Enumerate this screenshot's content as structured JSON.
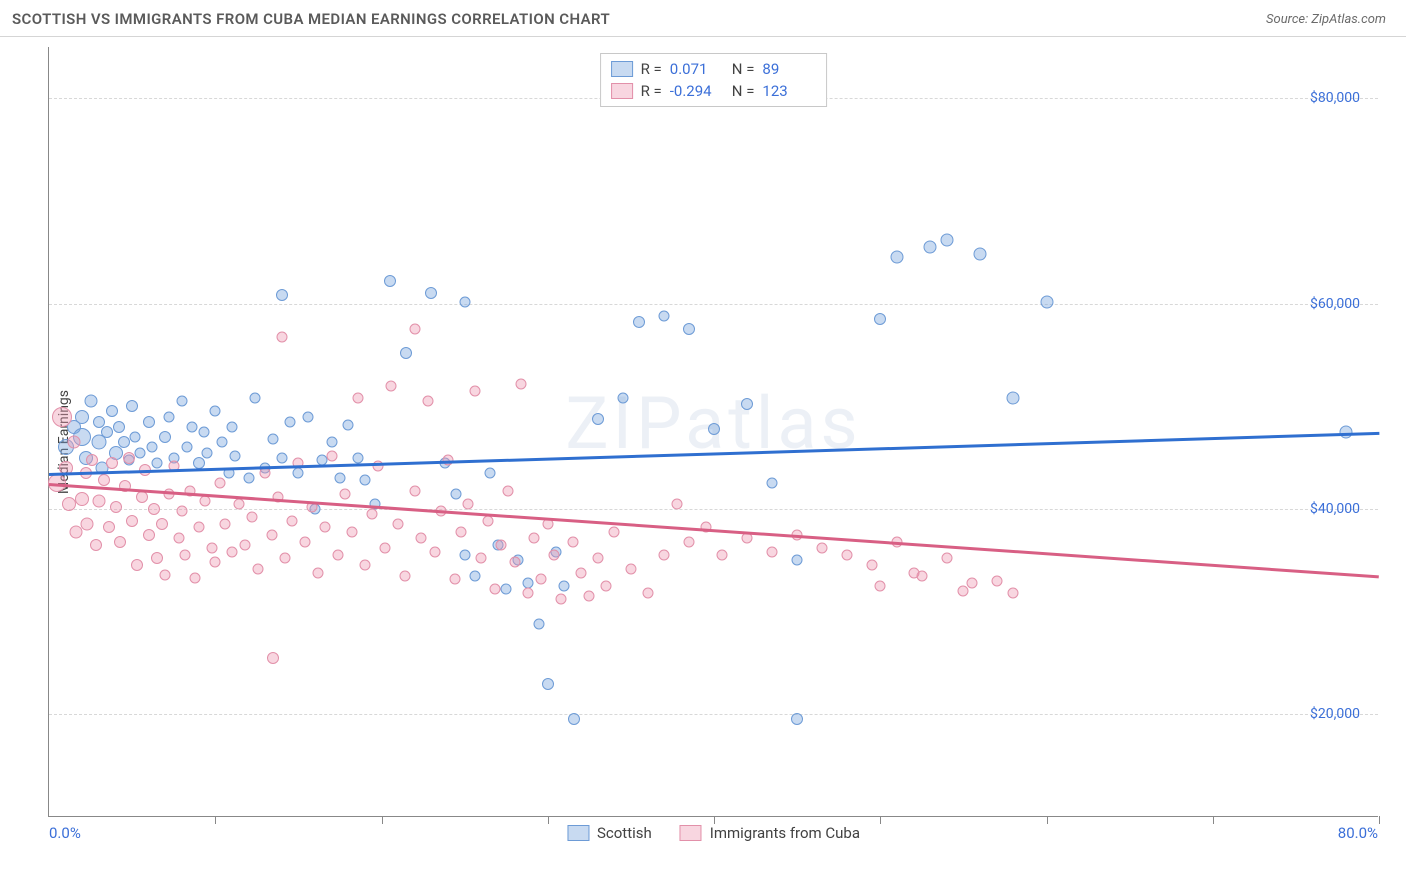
{
  "title": "SCOTTISH VS IMMIGRANTS FROM CUBA MEDIAN EARNINGS CORRELATION CHART",
  "source": "Source: ZipAtlas.com",
  "watermark": "ZIPatlas",
  "chart": {
    "type": "scatter",
    "ylabel": "Median Earnings",
    "xlim": [
      0,
      80
    ],
    "ylim": [
      10000,
      85000
    ],
    "y_gridlines": [
      20000,
      40000,
      60000,
      80000
    ],
    "y_tick_labels": [
      "$20,000",
      "$40,000",
      "$60,000",
      "$80,000"
    ],
    "x_ticks_pct": [
      0,
      10,
      20,
      30,
      40,
      50,
      60,
      70,
      80
    ],
    "x_axis_labels": {
      "left": "0.0%",
      "right": "80.0%"
    },
    "background_color": "#ffffff",
    "grid_color": "#d8d8d8",
    "axis_color": "#888888",
    "value_text_color": "#3b6fd8",
    "marker_size_min": 10,
    "marker_size_max": 22,
    "series": [
      {
        "name": "Scottish",
        "color_fill": "rgba(118,162,219,0.40)",
        "color_stroke": "#6d9bd6",
        "R": "0.071",
        "N": "89",
        "trend": {
          "x1": 0,
          "y1": 43500,
          "x2": 80,
          "y2": 47500,
          "color": "#2f6fd0",
          "width": 2.5
        },
        "points": [
          [
            1,
            46000,
            16
          ],
          [
            1.5,
            48000,
            14
          ],
          [
            2,
            47000,
            18
          ],
          [
            2,
            49000,
            14
          ],
          [
            2.2,
            45000,
            14
          ],
          [
            2.5,
            50500,
            13
          ],
          [
            3,
            46500,
            15
          ],
          [
            3,
            48500,
            12
          ],
          [
            3.2,
            44000,
            13
          ],
          [
            3.5,
            47500,
            12
          ],
          [
            3.8,
            49500,
            12
          ],
          [
            4,
            45500,
            14
          ],
          [
            4.2,
            48000,
            12
          ],
          [
            4.5,
            46500,
            12
          ],
          [
            4.8,
            44800,
            11
          ],
          [
            5,
            50000,
            12
          ],
          [
            5.2,
            47000,
            11
          ],
          [
            5.5,
            45500,
            11
          ],
          [
            6,
            48500,
            12
          ],
          [
            6.2,
            46000,
            11
          ],
          [
            6.5,
            44500,
            11
          ],
          [
            7,
            47000,
            12
          ],
          [
            7.2,
            49000,
            11
          ],
          [
            7.5,
            45000,
            11
          ],
          [
            8,
            50500,
            11
          ],
          [
            8.3,
            46000,
            11
          ],
          [
            8.6,
            48000,
            11
          ],
          [
            9,
            44500,
            12
          ],
          [
            9.3,
            47500,
            11
          ],
          [
            9.5,
            45500,
            11
          ],
          [
            10,
            49500,
            11
          ],
          [
            10.4,
            46500,
            11
          ],
          [
            10.8,
            43500,
            11
          ],
          [
            11,
            48000,
            11
          ],
          [
            11.2,
            45200,
            11
          ],
          [
            12,
            43000,
            11
          ],
          [
            12.4,
            50800,
            11
          ],
          [
            13,
            44000,
            11
          ],
          [
            13.5,
            46800,
            11
          ],
          [
            14,
            45000,
            11
          ],
          [
            14.5,
            48500,
            11
          ],
          [
            15,
            43500,
            11
          ],
          [
            15.6,
            49000,
            11
          ],
          [
            16,
            40000,
            11
          ],
          [
            16.4,
            44800,
            11
          ],
          [
            17,
            46500,
            11
          ],
          [
            17.5,
            43000,
            11
          ],
          [
            18,
            48200,
            11
          ],
          [
            18.6,
            45000,
            11
          ],
          [
            19,
            42800,
            11
          ],
          [
            19.6,
            40500,
            11
          ],
          [
            14,
            60800,
            12
          ],
          [
            20.5,
            62200,
            12
          ],
          [
            21.5,
            55200,
            12
          ],
          [
            23,
            61000,
            12
          ],
          [
            25,
            60200,
            11
          ],
          [
            23.8,
            44500,
            11
          ],
          [
            24.5,
            41500,
            11
          ],
          [
            25,
            35500,
            11
          ],
          [
            25.6,
            33500,
            11
          ],
          [
            26.5,
            43500,
            11
          ],
          [
            27,
            36500,
            11
          ],
          [
            27.5,
            32200,
            11
          ],
          [
            28.2,
            35000,
            11
          ],
          [
            28.8,
            32800,
            11
          ],
          [
            29.5,
            28800,
            11
          ],
          [
            30,
            23000,
            12
          ],
          [
            30.5,
            35800,
            11
          ],
          [
            31,
            32500,
            11
          ],
          [
            31.6,
            19500,
            12
          ],
          [
            33,
            48800,
            12
          ],
          [
            34.5,
            50800,
            11
          ],
          [
            35.5,
            58200,
            12
          ],
          [
            37,
            58800,
            11
          ],
          [
            38.5,
            57500,
            12
          ],
          [
            40,
            47800,
            12
          ],
          [
            42,
            50200,
            12
          ],
          [
            43.5,
            42500,
            11
          ],
          [
            45,
            35000,
            11
          ],
          [
            45,
            19500,
            12
          ],
          [
            50,
            58500,
            12
          ],
          [
            51,
            64500,
            13
          ],
          [
            53,
            65500,
            13
          ],
          [
            54,
            66200,
            13
          ],
          [
            56,
            64800,
            13
          ],
          [
            58,
            50800,
            13
          ],
          [
            60,
            60200,
            13
          ],
          [
            78,
            47500,
            13
          ]
        ]
      },
      {
        "name": "Immigrants from Cuba",
        "color_fill": "rgba(237,153,177,0.40)",
        "color_stroke": "#e290a9",
        "R": "-0.294",
        "N": "123",
        "trend": {
          "x1": 0,
          "y1": 42500,
          "x2": 80,
          "y2": 33500,
          "color": "#d85f84",
          "width": 2.5
        },
        "points": [
          [
            0.5,
            42500,
            18
          ],
          [
            0.8,
            49000,
            20
          ],
          [
            1,
            44000,
            14
          ],
          [
            1.2,
            40500,
            14
          ],
          [
            1.5,
            46500,
            13
          ],
          [
            1.6,
            37800,
            13
          ],
          [
            2,
            41000,
            14
          ],
          [
            2.2,
            43500,
            12
          ],
          [
            2.3,
            38500,
            13
          ],
          [
            2.6,
            44800,
            12
          ],
          [
            2.8,
            36500,
            12
          ],
          [
            3,
            40800,
            13
          ],
          [
            3.3,
            42800,
            12
          ],
          [
            3.6,
            38200,
            12
          ],
          [
            3.8,
            44500,
            12
          ],
          [
            4,
            40200,
            12
          ],
          [
            4.3,
            36800,
            12
          ],
          [
            4.6,
            42200,
            12
          ],
          [
            4.8,
            45000,
            12
          ],
          [
            5,
            38800,
            12
          ],
          [
            5.3,
            34500,
            12
          ],
          [
            5.6,
            41200,
            12
          ],
          [
            5.8,
            43800,
            12
          ],
          [
            6,
            37500,
            12
          ],
          [
            6.3,
            40000,
            12
          ],
          [
            6.5,
            35200,
            12
          ],
          [
            6.8,
            38500,
            12
          ],
          [
            7,
            33600,
            11
          ],
          [
            7.2,
            41500,
            11
          ],
          [
            7.5,
            44200,
            11
          ],
          [
            7.8,
            37200,
            11
          ],
          [
            8,
            39800,
            11
          ],
          [
            8.2,
            35500,
            11
          ],
          [
            8.5,
            41800,
            11
          ],
          [
            8.8,
            33300,
            11
          ],
          [
            9,
            38200,
            11
          ],
          [
            9.4,
            40800,
            11
          ],
          [
            9.8,
            36200,
            11
          ],
          [
            10,
            34800,
            11
          ],
          [
            10.3,
            42500,
            11
          ],
          [
            10.6,
            38500,
            11
          ],
          [
            11,
            35800,
            11
          ],
          [
            11.4,
            40500,
            11
          ],
          [
            11.8,
            36500,
            11
          ],
          [
            12.2,
            39200,
            11
          ],
          [
            12.6,
            34200,
            11
          ],
          [
            13,
            43500,
            11
          ],
          [
            13.4,
            37500,
            11
          ],
          [
            13.8,
            41200,
            11
          ],
          [
            14.2,
            35200,
            11
          ],
          [
            13.5,
            25500,
            12
          ],
          [
            14.6,
            38800,
            11
          ],
          [
            15,
            44500,
            11
          ],
          [
            15.4,
            36800,
            11
          ],
          [
            15.8,
            40200,
            11
          ],
          [
            16.2,
            33800,
            11
          ],
          [
            16.6,
            38200,
            11
          ],
          [
            17,
            45200,
            11
          ],
          [
            17.4,
            35500,
            11
          ],
          [
            17.8,
            41500,
            11
          ],
          [
            18.2,
            37800,
            11
          ],
          [
            18.6,
            50800,
            11
          ],
          [
            19,
            34500,
            11
          ],
          [
            19.4,
            39500,
            11
          ],
          [
            19.8,
            44200,
            11
          ],
          [
            20.2,
            36200,
            11
          ],
          [
            20.6,
            52000,
            11
          ],
          [
            21,
            38500,
            11
          ],
          [
            21.4,
            33500,
            11
          ],
          [
            14,
            56800,
            11
          ],
          [
            22,
            41800,
            11
          ],
          [
            22.4,
            37200,
            11
          ],
          [
            22,
            57500,
            11
          ],
          [
            22.8,
            50500,
            11
          ],
          [
            23.2,
            35800,
            11
          ],
          [
            23.6,
            39800,
            11
          ],
          [
            24,
            44800,
            11
          ],
          [
            24.4,
            33200,
            11
          ],
          [
            24.8,
            37800,
            11
          ],
          [
            25.2,
            40500,
            11
          ],
          [
            25.6,
            51500,
            11
          ],
          [
            26,
            35200,
            11
          ],
          [
            26.4,
            38800,
            11
          ],
          [
            26.8,
            32200,
            11
          ],
          [
            27.2,
            36500,
            11
          ],
          [
            27.6,
            41800,
            11
          ],
          [
            28,
            34800,
            11
          ],
          [
            28.4,
            52200,
            11
          ],
          [
            28.8,
            31800,
            11
          ],
          [
            29.2,
            37200,
            11
          ],
          [
            29.6,
            33200,
            11
          ],
          [
            30,
            38500,
            11
          ],
          [
            30.4,
            35500,
            11
          ],
          [
            30.8,
            31200,
            11
          ],
          [
            31.5,
            36800,
            11
          ],
          [
            32,
            33800,
            11
          ],
          [
            32.5,
            31500,
            11
          ],
          [
            33,
            35200,
            11
          ],
          [
            33.5,
            32500,
            11
          ],
          [
            34,
            37800,
            11
          ],
          [
            35,
            34200,
            11
          ],
          [
            36,
            31800,
            11
          ],
          [
            37,
            35500,
            11
          ],
          [
            37.8,
            40500,
            11
          ],
          [
            38.5,
            36800,
            11
          ],
          [
            39.5,
            38200,
            11
          ],
          [
            40.5,
            35500,
            11
          ],
          [
            42,
            37200,
            11
          ],
          [
            43.5,
            35800,
            11
          ],
          [
            45,
            37500,
            11
          ],
          [
            46.5,
            36200,
            11
          ],
          [
            48,
            35500,
            11
          ],
          [
            49.5,
            34500,
            11
          ],
          [
            51,
            36800,
            11
          ],
          [
            52.5,
            33500,
            11
          ],
          [
            54,
            35200,
            11
          ],
          [
            55.5,
            32800,
            11
          ],
          [
            57,
            33000,
            11
          ],
          [
            58,
            31800,
            11
          ],
          [
            55,
            32000,
            11
          ],
          [
            52,
            33800,
            11
          ],
          [
            50,
            32500,
            11
          ]
        ]
      }
    ]
  },
  "legend_bottom": [
    {
      "label": "Scottish",
      "fill": "rgba(118,162,219,0.40)",
      "stroke": "#6d9bd6"
    },
    {
      "label": "Immigrants from Cuba",
      "fill": "rgba(237,153,177,0.40)",
      "stroke": "#e290a9"
    }
  ]
}
